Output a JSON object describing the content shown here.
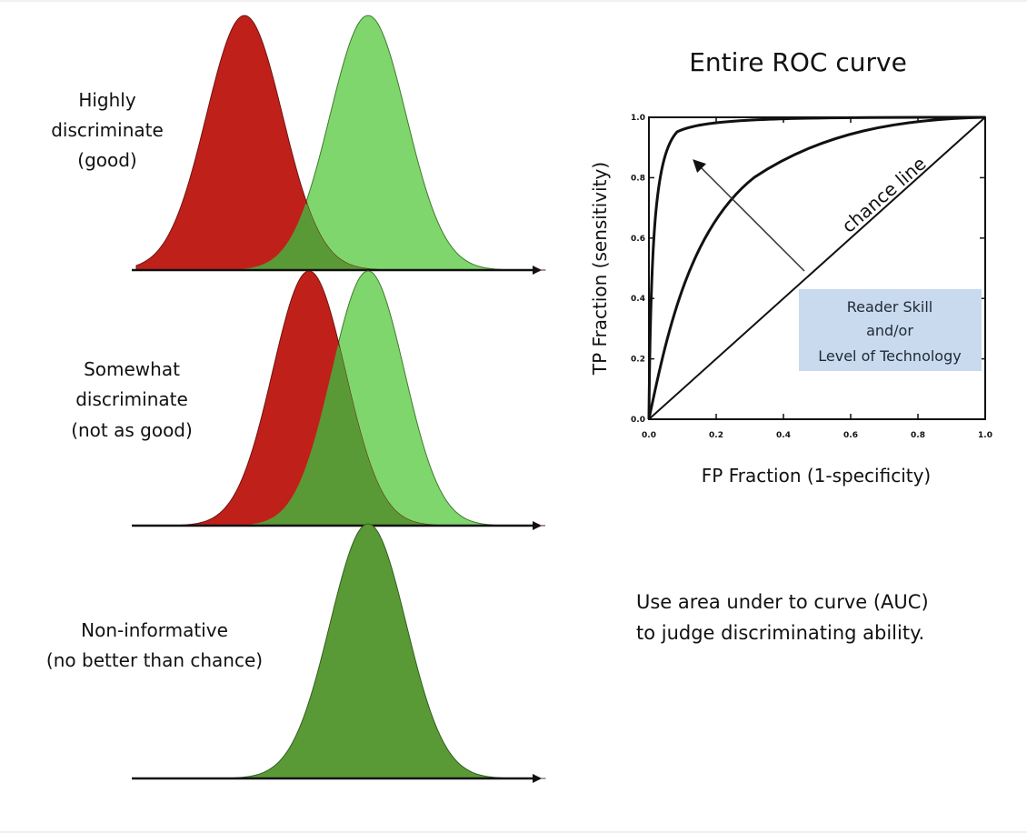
{
  "panels": [
    {
      "id": "good",
      "label_lines": [
        "Highly",
        "discriminate",
        "(good)"
      ],
      "overlap": "large"
    },
    {
      "id": "moderate",
      "label_lines": [
        "Somewhat",
        "discriminate",
        "(not as good)"
      ],
      "overlap": "partial"
    },
    {
      "id": "none",
      "label_lines": [
        "Non-informative",
        "(no better than chance)"
      ],
      "overlap": "full"
    }
  ],
  "roc": {
    "title": "Entire ROC curve",
    "xlabel": "FP Fraction (1-specificity)",
    "ylabel": "TP Fraction (sensitivity)",
    "x_ticks": [
      "0.0",
      "0.2",
      "0.4",
      "0.6",
      "0.8",
      "1.0"
    ],
    "y_ticks": [
      "0.0",
      "0.2",
      "0.4",
      "0.6",
      "0.8",
      "1.0"
    ],
    "chance_label": "chance line",
    "box_lines": [
      "Reader Skill",
      "and/or",
      "Level of Technology"
    ]
  },
  "note_lines": [
    "Use area under to curve (AUC)",
    "to judge discriminating ability."
  ],
  "colors": {
    "red": "#c0201a",
    "light_green": "#7fd66d",
    "dark_green": "#5a9a36",
    "box": "#c9d9ee"
  }
}
